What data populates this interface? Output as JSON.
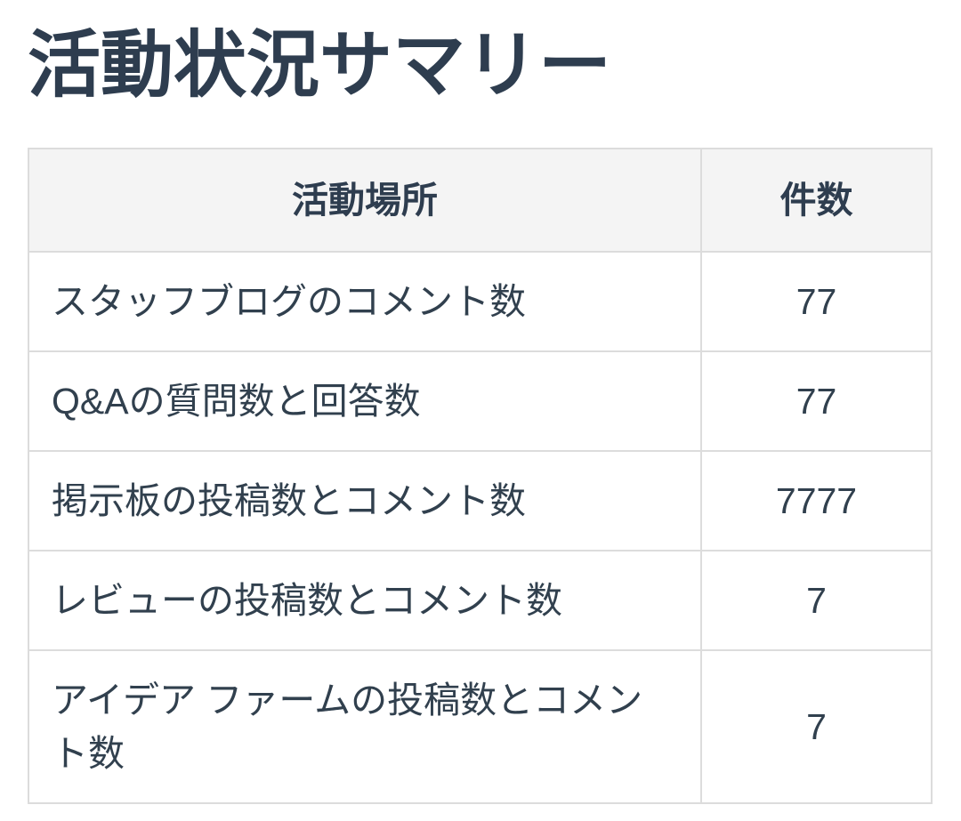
{
  "page": {
    "title": "活動状況サマリー"
  },
  "table": {
    "columns": [
      {
        "label": "活動場所"
      },
      {
        "label": "件数"
      }
    ],
    "rows": [
      {
        "place": "スタッフブログのコメント数",
        "count": "77"
      },
      {
        "place": "Q&Aの質問数と回答数",
        "count": "77"
      },
      {
        "place": "掲示板の投稿数とコメント数",
        "count": "7777"
      },
      {
        "place": "レビューの投稿数とコメント数",
        "count": "7"
      },
      {
        "place": "アイデア ファームの投稿数とコメント数",
        "count": "7"
      }
    ]
  },
  "colors": {
    "text": "#2e3d4f",
    "header_bg": "#f4f4f4",
    "border": "#dcdcdc",
    "row_bg": "#ffffff"
  }
}
